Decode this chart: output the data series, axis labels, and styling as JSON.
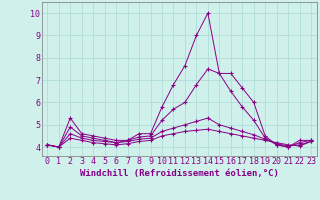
{
  "xlabel": "Windchill (Refroidissement éolien,°C)",
  "background_color": "#cff0eb",
  "grid_color": "#aad8d3",
  "line_color": "#880088",
  "xlim_left": -0.5,
  "xlim_right": 23.5,
  "ylim_bottom": 3.6,
  "ylim_top": 10.5,
  "xticks": [
    0,
    1,
    2,
    3,
    4,
    5,
    6,
    7,
    8,
    9,
    10,
    11,
    12,
    13,
    14,
    15,
    16,
    17,
    18,
    19,
    20,
    21,
    22,
    23
  ],
  "yticks": [
    4,
    5,
    6,
    7,
    8,
    9,
    10
  ],
  "lines": [
    [
      4.1,
      4.0,
      5.3,
      4.6,
      4.5,
      4.4,
      4.3,
      4.3,
      4.6,
      4.6,
      5.8,
      6.8,
      7.65,
      9.0,
      10.0,
      7.3,
      7.3,
      6.65,
      6.0,
      4.5,
      4.1,
      4.0,
      4.3,
      4.3
    ],
    [
      4.1,
      4.0,
      4.9,
      4.5,
      4.4,
      4.3,
      4.2,
      4.3,
      4.45,
      4.5,
      5.2,
      5.7,
      6.0,
      6.8,
      7.5,
      7.3,
      6.5,
      5.8,
      5.2,
      4.4,
      4.1,
      4.0,
      4.2,
      4.3
    ],
    [
      4.1,
      4.0,
      4.6,
      4.4,
      4.3,
      4.25,
      4.2,
      4.25,
      4.35,
      4.4,
      4.7,
      4.85,
      5.0,
      5.15,
      5.3,
      5.0,
      4.85,
      4.7,
      4.55,
      4.35,
      4.15,
      4.05,
      4.1,
      4.25
    ],
    [
      4.1,
      4.0,
      4.4,
      4.3,
      4.2,
      4.15,
      4.1,
      4.15,
      4.25,
      4.3,
      4.5,
      4.6,
      4.7,
      4.75,
      4.8,
      4.7,
      4.6,
      4.5,
      4.4,
      4.3,
      4.2,
      4.1,
      4.05,
      4.25
    ]
  ],
  "tick_fontsize": 6,
  "xlabel_fontsize": 6.5
}
